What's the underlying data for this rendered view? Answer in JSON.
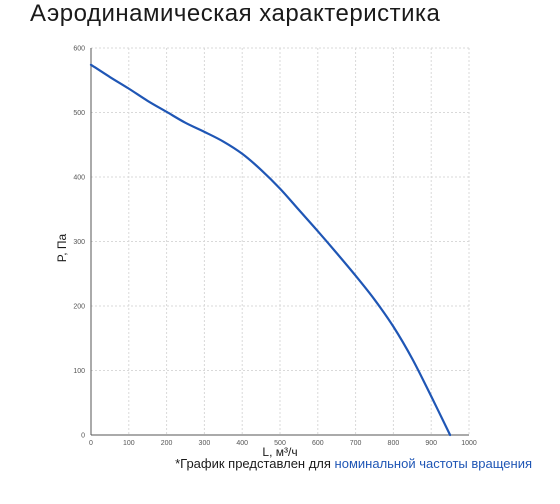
{
  "title": "Аэродинамическая характеристика",
  "footnote": {
    "prefix": "*График представлен для ",
    "highlight": "номинальной частоты вращения"
  },
  "colors": {
    "curve": "#1f56b5",
    "grid": "#d9d9d9",
    "axis": "#555555",
    "tick_text": "#555555",
    "accent": "#1f56b5"
  },
  "chart_data": {
    "type": "line",
    "xlabel": "L, м³/ч",
    "ylabel": "P, Па",
    "xlim": [
      0,
      1000
    ],
    "ylim": [
      0,
      600
    ],
    "x_ticks": [
      0,
      100,
      200,
      300,
      400,
      500,
      600,
      700,
      800,
      900,
      1000
    ],
    "y_ticks": [
      0,
      100,
      200,
      300,
      400,
      500,
      600
    ],
    "grid": true,
    "legend": "none",
    "series": [
      {
        "x": [
          0,
          50,
          100,
          150,
          200,
          250,
          300,
          350,
          400,
          450,
          500,
          550,
          600,
          650,
          700,
          750,
          800,
          850,
          900,
          950
        ],
        "y": [
          574,
          555,
          537,
          518,
          501,
          484,
          470,
          455,
          436,
          411,
          382,
          349,
          316,
          282,
          247,
          210,
          168,
          118,
          60,
          0
        ]
      }
    ]
  }
}
